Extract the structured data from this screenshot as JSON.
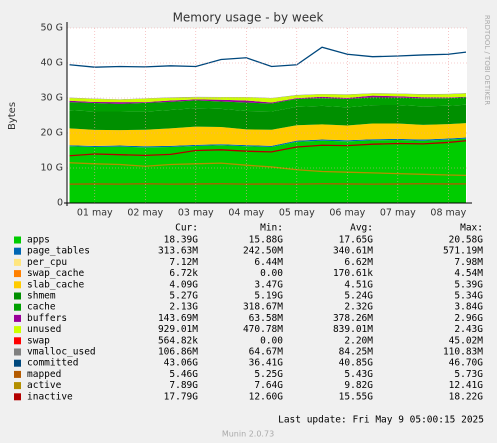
{
  "chart_data": {
    "type": "area",
    "title": "Memory usage - by week",
    "y_label": "Bytes",
    "side_text": "RRDTOOL / TOBI OETIKER",
    "footer": "Last update: Fri May  9 05:00:15 2025",
    "version": "Munin 2.0.73",
    "stat_headers": [
      "Cur:",
      "Min:",
      "Avg:",
      "Max:"
    ],
    "x": [
      1.0,
      1.5,
      2.0,
      2.5,
      3.0,
      3.5,
      4.0,
      4.5,
      5.0,
      5.5,
      6.0,
      6.5,
      7.0,
      7.5,
      8.0,
      8.5,
      8.85
    ],
    "xlim": [
      0.95,
      8.87
    ],
    "xticks": [
      {
        "value": 1.5,
        "label": "01 may"
      },
      {
        "value": 2.5,
        "label": "02 may"
      },
      {
        "value": 3.5,
        "label": "03 may"
      },
      {
        "value": 4.5,
        "label": "04 may"
      },
      {
        "value": 5.5,
        "label": "05 may"
      },
      {
        "value": 6.5,
        "label": "06 may"
      },
      {
        "value": 7.5,
        "label": "07 may"
      },
      {
        "value": 8.5,
        "label": "08 may"
      }
    ],
    "ylim": [
      0,
      50000000000.0
    ],
    "yticks": [
      0,
      {
        "value": 10000000000.0,
        "label": "10 G"
      },
      {
        "value": 20000000000.0,
        "label": "20 G"
      },
      {
        "value": 30000000000.0,
        "label": "30 G"
      },
      {
        "value": 40000000000.0,
        "label": "40 G"
      },
      {
        "value": 50000000000.0,
        "label": "50 G"
      }
    ],
    "grid": true,
    "series": [
      {
        "name": "apps",
        "kind": "area",
        "color": "#00cc00",
        "stats": [
          "18.39G",
          "15.88G",
          "17.65G",
          "20.58G"
        ],
        "values": [
          16200000000.0,
          16000000000.0,
          16100000000.0,
          15900000000.0,
          16000000000.0,
          16300000000.0,
          16500000000.0,
          16200000000.0,
          16000000000.0,
          17500000000.0,
          17800000000.0,
          17600000000.0,
          17900000000.0,
          18000000000.0,
          17800000000.0,
          18100000000.0,
          18400000000.0
        ]
      },
      {
        "name": "page_tables",
        "kind": "area",
        "color": "#0066b3",
        "stats": [
          "313.63M",
          "242.50M",
          "340.61M",
          "571.19M"
        ],
        "values": [
          310000000.0,
          300000000.0,
          320000000.0,
          310000000.0,
          330000000.0,
          310000000.0,
          300000000.0,
          340000000.0,
          320000000.0,
          310000000.0,
          350000000.0,
          330000000.0,
          320000000.0,
          310000000.0,
          330000000.0,
          320000000.0,
          310000000.0
        ]
      },
      {
        "name": "per_cpu",
        "kind": "area",
        "color": "#ffe680",
        "stats": [
          "7.12M",
          "6.44M",
          "6.62M",
          "7.98M"
        ],
        "values": [
          6600000.0,
          6600000.0,
          6500000.0,
          6600000.0,
          6700000.0,
          6600000.0,
          6600000.0,
          6500000.0,
          6600000.0,
          6700000.0,
          6600000.0,
          6600000.0,
          6700000.0,
          6600000.0,
          6800000.0,
          7000000.0,
          7100000.0
        ]
      },
      {
        "name": "swap_cache",
        "kind": "area",
        "color": "#ff8000",
        "stats": [
          "6.72k",
          "0.00",
          "170.61k",
          "4.54M"
        ],
        "values": [
          0,
          0,
          120000.0,
          0,
          0,
          4500000.0,
          200000.0,
          0,
          0,
          100000.0,
          0,
          0,
          0,
          20000.0,
          0,
          0,
          6720
        ]
      },
      {
        "name": "slab_cache",
        "kind": "area",
        "color": "#ffcc00",
        "stats": [
          "4.09G",
          "3.47G",
          "4.51G",
          "5.39G"
        ],
        "values": [
          4800000000.0,
          4600000000.0,
          4400000000.0,
          4700000000.0,
          5000000000.0,
          5200000000.0,
          4900000000.0,
          4500000000.0,
          4600000000.0,
          4400000000.0,
          4300000000.0,
          4200000000.0,
          4500000000.0,
          4400000000.0,
          4200000000.0,
          4100000000.0,
          4090000000.0
        ]
      },
      {
        "name": "shmem",
        "kind": "area",
        "color": "#008f00",
        "stats": [
          "5.27G",
          "5.19G",
          "5.24G",
          "5.34G"
        ],
        "values": [
          5200000000.0,
          5250000000.0,
          5300000000.0,
          5200000000.0,
          5250000000.0,
          5300000000.0,
          5200000000.0,
          5250000000.0,
          5200000000.0,
          5250000000.0,
          5300000000.0,
          5200000000.0,
          5250000000.0,
          5300000000.0,
          5270000000.0,
          5250000000.0,
          5270000000.0
        ]
      },
      {
        "name": "cache",
        "kind": "area",
        "color": "#00a000",
        "stats": [
          "2.13G",
          "318.67M",
          "2.32G",
          "3.84G"
        ],
        "values": [
          2300000000.0,
          2400000000.0,
          2200000000.0,
          2500000000.0,
          2300000000.0,
          2200000000.0,
          2100000000.0,
          2400000000.0,
          2300000000.0,
          2300000000.0,
          2200000000.0,
          2400000000.0,
          2200000000.0,
          2100000000.0,
          2300000000.0,
          2200000000.0,
          2130000000.0
        ]
      },
      {
        "name": "buffers",
        "kind": "area",
        "color": "#990099",
        "stats": [
          "143.69M",
          "63.58M",
          "378.26M",
          "2.96G"
        ],
        "values": [
          400000000.0,
          300000000.0,
          500000000.0,
          200000000.0,
          400000000.0,
          300000000.0,
          500000000.0,
          600000000.0,
          300000000.0,
          200000000.0,
          400000000.0,
          300000000.0,
          500000000.0,
          400000000.0,
          300000000.0,
          200000000.0,
          144000000.0
        ]
      },
      {
        "name": "unused",
        "kind": "area",
        "color": "#ccff00",
        "stats": [
          "929.01M",
          "470.78M",
          "839.01M",
          "2.43G"
        ],
        "values": [
          800000000.0,
          900000000.0,
          700000000.0,
          1000000000.0,
          800000000.0,
          600000000.0,
          700000000.0,
          900000000.0,
          1200000000.0,
          800000000.0,
          700000000.0,
          900000000.0,
          600000000.0,
          700000000.0,
          800000000.0,
          900000000.0,
          929000000.0
        ]
      },
      {
        "name": "swap",
        "kind": "area",
        "color": "#ff0000",
        "stats": [
          "564.82k",
          "0.00",
          "2.20M",
          "45.02M"
        ],
        "values": [
          0,
          0,
          0,
          1000000.0,
          0,
          0,
          0,
          2000000.0,
          0,
          0,
          0,
          0,
          0,
          0,
          0,
          0,
          560000.0
        ]
      },
      {
        "name": "vmalloc_used",
        "kind": "area",
        "color": "#808080",
        "stats": [
          "106.86M",
          "64.67M",
          "84.25M",
          "110.83M"
        ],
        "values": [
          80000000.0,
          82000000.0,
          84000000.0,
          83000000.0,
          85000000.0,
          84000000.0,
          83000000.0,
          86000000.0,
          84000000.0,
          85000000.0,
          83000000.0,
          84000000.0,
          86000000.0,
          85000000.0,
          90000000.0,
          100000000.0,
          107000000.0
        ]
      },
      {
        "name": "committed",
        "kind": "line",
        "color": "#00487d",
        "stats": [
          "43.06G",
          "36.41G",
          "40.85G",
          "46.70G"
        ],
        "values": [
          39500000000.0,
          38800000000.0,
          39000000000.0,
          38900000000.0,
          39200000000.0,
          39000000000.0,
          41000000000.0,
          41500000000.0,
          39000000000.0,
          39500000000.0,
          44500000000.0,
          42500000000.0,
          41800000000.0,
          42000000000.0,
          42300000000.0,
          42500000000.0,
          43100000000.0
        ]
      },
      {
        "name": "mapped",
        "kind": "line",
        "color": "#b35a00",
        "stats": [
          "5.46G",
          "5.25G",
          "5.43G",
          "5.73G"
        ],
        "values": [
          5400000000.0,
          5450000000.0,
          5400000000.0,
          5500000000.0,
          5400000000.0,
          5450000000.0,
          5500000000.0,
          5400000000.0,
          5450000000.0,
          5400000000.0,
          5500000000.0,
          5450000000.0,
          5400000000.0,
          5450000000.0,
          5500000000.0,
          5450000000.0,
          5460000000.0
        ]
      },
      {
        "name": "active",
        "kind": "line",
        "color": "#b38f00",
        "stats": [
          "7.89G",
          "7.64G",
          "9.82G",
          "12.41G"
        ],
        "values": [
          11500000000.0,
          11200000000.0,
          11000000000.0,
          10500000000.0,
          11000000000.0,
          11200000000.0,
          11400000000.0,
          10800000000.0,
          10300000000.0,
          9500000000.0,
          9000000000.0,
          8800000000.0,
          8600000000.0,
          8400000000.0,
          8200000000.0,
          8000000000.0,
          7890000000.0
        ]
      },
      {
        "name": "inactive",
        "kind": "line",
        "color": "#b30000",
        "stats": [
          "17.79G",
          "12.60G",
          "15.55G",
          "18.22G"
        ],
        "values": [
          13500000000.0,
          14000000000.0,
          13800000000.0,
          13600000000.0,
          13900000000.0,
          15000000000.0,
          15200000000.0,
          14800000000.0,
          14600000000.0,
          16000000000.0,
          16500000000.0,
          16400000000.0,
          16800000000.0,
          17000000000.0,
          16900000000.0,
          17300000000.0,
          17790000000.0
        ]
      }
    ]
  }
}
